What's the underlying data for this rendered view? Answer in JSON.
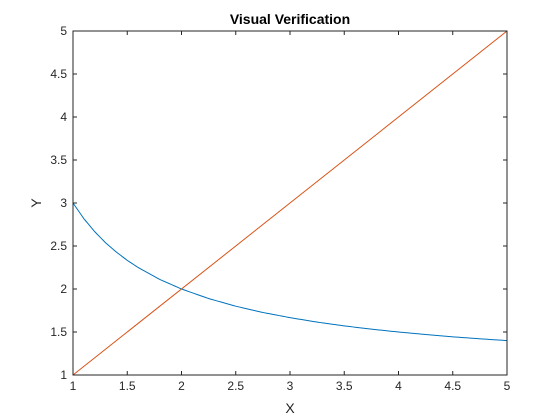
{
  "chart_data": {
    "type": "line",
    "title": "Visual Verification",
    "xlabel": "X",
    "ylabel": "Y",
    "xlim": [
      1,
      5
    ],
    "ylim": [
      1,
      5
    ],
    "xticks": [
      1,
      1.5,
      2,
      2.5,
      3,
      3.5,
      4,
      4.5,
      5
    ],
    "xtick_labels": [
      "1",
      "1.5",
      "2",
      "2.5",
      "3",
      "3.5",
      "4",
      "4.5",
      "5"
    ],
    "yticks": [
      1,
      1.5,
      2,
      2.5,
      3,
      3.5,
      4,
      4.5,
      5
    ],
    "ytick_labels": [
      "1",
      "1.5",
      "2",
      "2.5",
      "3",
      "3.5",
      "4",
      "4.5",
      "5"
    ],
    "grid": false,
    "box": true,
    "series": [
      {
        "color": "#0072BD",
        "x": [
          1,
          1.1,
          1.2,
          1.3,
          1.4,
          1.5,
          1.6,
          1.8,
          2,
          2.25,
          2.5,
          2.75,
          3,
          3.25,
          3.5,
          3.75,
          4,
          4.25,
          4.5,
          4.75,
          5
        ],
        "y": [
          3,
          2.818,
          2.667,
          2.538,
          2.429,
          2.333,
          2.25,
          2.111,
          2,
          1.889,
          1.8,
          1.727,
          1.667,
          1.615,
          1.571,
          1.533,
          1.5,
          1.471,
          1.444,
          1.421,
          1.4
        ]
      },
      {
        "color": "#D95319",
        "x": [
          1,
          5
        ],
        "y": [
          1,
          5
        ]
      }
    ]
  }
}
